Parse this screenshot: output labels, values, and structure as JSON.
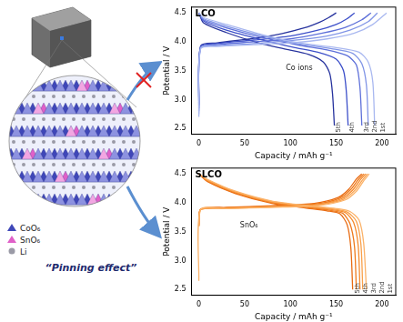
{
  "chart_data": [
    {
      "type": "line",
      "title": "LCO",
      "x_label": "Capacity / mAh g⁻¹",
      "y_label": "Potential / V",
      "xlim": [
        -8,
        215
      ],
      "xticks": [
        0,
        50,
        100,
        150,
        200
      ],
      "ylim": [
        2.4,
        4.6
      ],
      "yticks": [
        2.5,
        {
          "value": 3.0,
          "label": "3.0"
        },
        3.5,
        {
          "value": 4.0,
          "label": "4.0"
        },
        4.5
      ],
      "grid": false,
      "annotations": [
        {
          "text": "Co ions",
          "x": 95,
          "y": 3.55
        }
      ],
      "series": [
        {
          "name": "1st",
          "color": "#a9b8f0",
          "x": [
            0,
            2,
            20,
            60,
            100,
            140,
            170,
            190,
            205,
            null,
            0,
            5,
            30,
            70,
            110,
            150,
            175,
            185,
            190,
            192
          ],
          "values": [
            2.7,
            3.88,
            3.92,
            3.95,
            3.98,
            4.05,
            4.15,
            4.3,
            4.5,
            null,
            4.5,
            4.42,
            4.3,
            4.12,
            3.98,
            3.9,
            3.82,
            3.65,
            3.3,
            2.55
          ]
        },
        {
          "name": "2nd",
          "color": "#8195e6",
          "x": [
            0,
            2,
            20,
            60,
            100,
            140,
            165,
            185,
            195,
            null,
            0,
            5,
            30,
            70,
            110,
            145,
            168,
            178,
            183,
            185
          ],
          "values": [
            2.75,
            3.9,
            3.93,
            3.97,
            4.02,
            4.1,
            4.2,
            4.35,
            4.5,
            null,
            4.5,
            4.4,
            4.27,
            4.1,
            3.96,
            3.88,
            3.8,
            3.62,
            3.25,
            2.55
          ]
        },
        {
          "name": "3rd",
          "color": "#5d6fd9",
          "x": [
            0,
            2,
            20,
            60,
            100,
            135,
            160,
            178,
            188,
            null,
            0,
            5,
            30,
            70,
            110,
            140,
            162,
            172,
            176,
            178
          ],
          "values": [
            2.8,
            3.9,
            3.95,
            4.0,
            4.05,
            4.15,
            4.25,
            4.38,
            4.5,
            null,
            4.5,
            4.38,
            4.24,
            4.07,
            3.94,
            3.86,
            3.76,
            3.6,
            3.2,
            2.55
          ]
        },
        {
          "name": "4th",
          "color": "#3c4fc9",
          "x": [
            0,
            2,
            20,
            60,
            100,
            130,
            150,
            162,
            170,
            null,
            0,
            5,
            30,
            70,
            105,
            130,
            150,
            158,
            161,
            163
          ],
          "values": [
            2.85,
            3.92,
            3.97,
            4.03,
            4.1,
            4.2,
            4.3,
            4.4,
            4.5,
            null,
            4.5,
            4.36,
            4.2,
            4.03,
            3.9,
            3.82,
            3.7,
            3.5,
            3.15,
            2.55
          ]
        },
        {
          "name": "5th",
          "color": "#27339e",
          "x": [
            0,
            2,
            20,
            60,
            90,
            115,
            132,
            142,
            150,
            null,
            0,
            5,
            30,
            65,
            95,
            120,
            136,
            143,
            146,
            148
          ],
          "values": [
            2.9,
            3.93,
            3.98,
            4.06,
            4.14,
            4.24,
            4.34,
            4.42,
            4.5,
            null,
            4.5,
            4.33,
            4.16,
            3.98,
            3.87,
            3.78,
            3.65,
            3.45,
            3.1,
            2.55
          ]
        }
      ]
    },
    {
      "type": "line",
      "title": "SLCO",
      "x_label": "Capacity / mAh g⁻¹",
      "y_label": "Potential / V",
      "xlim": [
        -8,
        215
      ],
      "xticks": [
        0,
        50,
        100,
        150,
        200
      ],
      "ylim": [
        2.4,
        4.6
      ],
      "yticks": [
        2.5,
        {
          "value": 3.0,
          "label": "3.0"
        },
        3.5,
        {
          "value": 4.0,
          "label": "4.0"
        },
        4.5
      ],
      "grid": false,
      "annotations": [
        {
          "text": "SnO₆",
          "x": 45,
          "y": 3.6
        }
      ],
      "series": [
        {
          "name": "1st",
          "color": "#fbb36a",
          "x": [
            0,
            2,
            30,
            80,
            130,
            160,
            172,
            180,
            186,
            null,
            0,
            10,
            40,
            80,
            120,
            150,
            165,
            175,
            180,
            183
          ],
          "values": [
            2.65,
            3.88,
            3.9,
            3.92,
            3.95,
            4.05,
            4.2,
            4.38,
            4.5,
            null,
            4.5,
            4.4,
            4.2,
            4.03,
            3.95,
            3.9,
            3.85,
            3.7,
            3.3,
            2.5
          ]
        },
        {
          "name": "2nd",
          "color": "#f9a04a",
          "x": [
            0,
            2,
            30,
            80,
            130,
            158,
            170,
            178,
            184,
            null,
            0,
            10,
            40,
            80,
            120,
            148,
            162,
            172,
            177,
            179
          ],
          "values": [
            3.6,
            3.88,
            3.9,
            3.93,
            3.96,
            4.06,
            4.21,
            4.38,
            4.5,
            null,
            4.5,
            4.39,
            4.19,
            4.02,
            3.94,
            3.89,
            3.84,
            3.68,
            3.28,
            2.5
          ]
        },
        {
          "name": "3rd",
          "color": "#f58a2c",
          "x": [
            0,
            2,
            30,
            80,
            130,
            156,
            168,
            176,
            182,
            null,
            0,
            10,
            40,
            80,
            120,
            146,
            160,
            169,
            174,
            176
          ],
          "values": [
            3.6,
            3.88,
            3.91,
            3.93,
            3.97,
            4.07,
            4.22,
            4.39,
            4.5,
            null,
            4.5,
            4.38,
            4.18,
            4.01,
            3.93,
            3.88,
            3.83,
            3.66,
            3.26,
            2.5
          ]
        },
        {
          "name": "4th",
          "color": "#ee7a1c",
          "x": [
            0,
            2,
            30,
            80,
            128,
            154,
            166,
            174,
            180,
            null,
            0,
            10,
            40,
            80,
            118,
            143,
            157,
            165,
            170,
            172
          ],
          "values": [
            3.6,
            3.89,
            3.91,
            3.94,
            3.98,
            4.08,
            4.23,
            4.4,
            4.5,
            null,
            4.5,
            4.37,
            4.17,
            4.0,
            3.92,
            3.87,
            3.82,
            3.64,
            3.24,
            2.5
          ]
        },
        {
          "name": "5th",
          "color": "#e86a10",
          "x": [
            0,
            2,
            30,
            80,
            126,
            152,
            164,
            172,
            178,
            null,
            0,
            10,
            40,
            80,
            116,
            140,
            154,
            162,
            166,
            168
          ],
          "values": [
            3.6,
            3.89,
            3.92,
            3.95,
            3.99,
            4.09,
            4.24,
            4.41,
            4.5,
            null,
            4.5,
            4.36,
            4.16,
            3.99,
            3.91,
            3.86,
            3.81,
            3.62,
            3.22,
            2.5
          ]
        }
      ]
    }
  ],
  "diagram": {
    "legend": [
      {
        "label": "CoO₆",
        "color": "#3f47b8",
        "marker": "triangle"
      },
      {
        "label": "SnO₆",
        "color": "#e060c8",
        "marker": "triangle"
      },
      {
        "label": "Li",
        "color": "#9a9aa6",
        "marker": "circle"
      }
    ],
    "annotation": "“Pinning effect”"
  }
}
